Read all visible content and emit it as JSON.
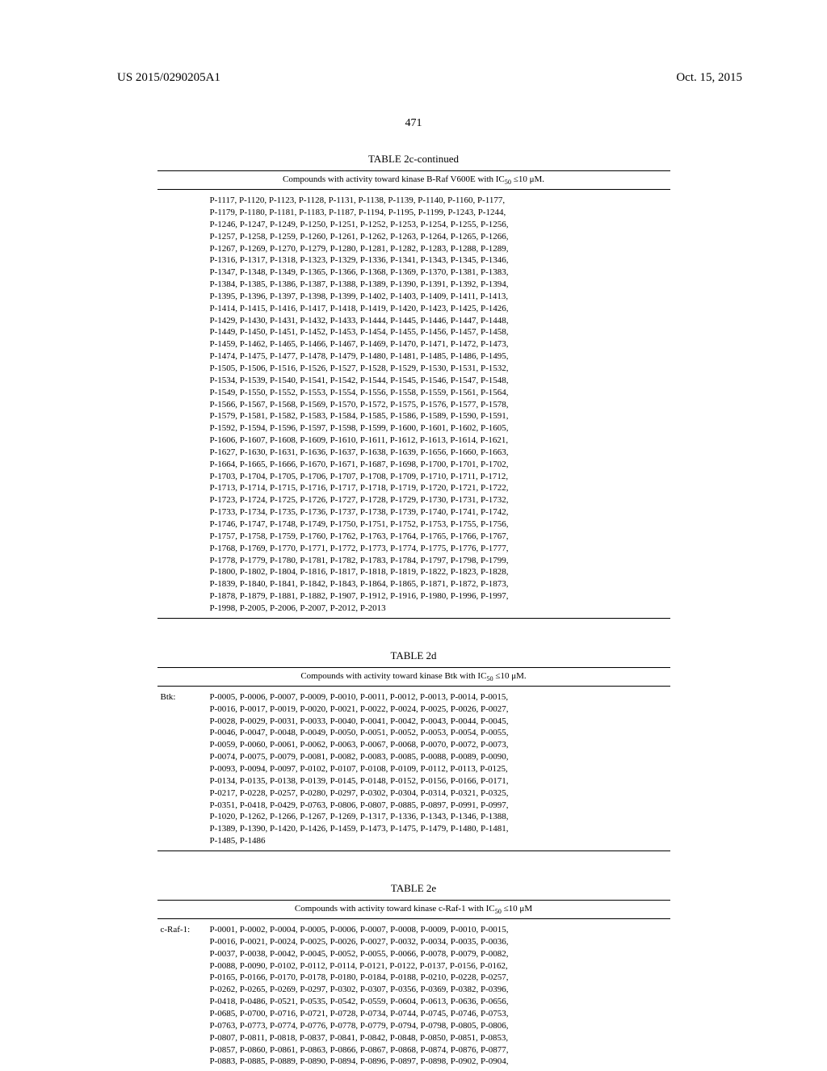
{
  "header": {
    "pub_number": "US 2015/0290205A1",
    "date": "Oct. 15, 2015"
  },
  "page_number": "471",
  "table2c": {
    "title": "TABLE 2c-continued",
    "subtitle_prefix": "Compounds with activity toward kinase B-Raf V600E with IC",
    "subtitle_sub": "50",
    "subtitle_suffix": " ≤10 μM.",
    "lines": [
      "P-1117, P-1120, P-1123, P-1128, P-1131, P-1138, P-1139, P-1140, P-1160, P-1177,",
      "P-1179, P-1180, P-1181, P-1183, P-1187, P-1194, P-1195, P-1199, P-1243, P-1244,",
      "P-1246, P-1247, P-1249, P-1250, P-1251, P-1252, P-1253, P-1254, P-1255, P-1256,",
      "P-1257, P-1258, P-1259, P-1260, P-1261, P-1262, P-1263, P-1264, P-1265, P-1266,",
      "P-1267, P-1269, P-1270, P-1279, P-1280, P-1281, P-1282, P-1283, P-1288, P-1289,",
      "P-1316, P-1317, P-1318, P-1323, P-1329, P-1336, P-1341, P-1343, P-1345, P-1346,",
      "P-1347, P-1348, P-1349, P-1365, P-1366, P-1368, P-1369, P-1370, P-1381, P-1383,",
      "P-1384, P-1385, P-1386, P-1387, P-1388, P-1389, P-1390, P-1391, P-1392, P-1394,",
      "P-1395, P-1396, P-1397, P-1398, P-1399, P-1402, P-1403, P-1409, P-1411, P-1413,",
      "P-1414, P-1415, P-1416, P-1417, P-1418, P-1419, P-1420, P-1423, P-1425, P-1426,",
      "P-1429, P-1430, P-1431, P-1432, P-1433, P-1444, P-1445, P-1446, P-1447, P-1448,",
      "P-1449, P-1450, P-1451, P-1452, P-1453, P-1454, P-1455, P-1456, P-1457, P-1458,",
      "P-1459, P-1462, P-1465, P-1466, P-1467, P-1469, P-1470, P-1471, P-1472, P-1473,",
      "P-1474, P-1475, P-1477, P-1478, P-1479, P-1480, P-1481, P-1485, P-1486, P-1495,",
      "P-1505, P-1506, P-1516, P-1526, P-1527, P-1528, P-1529, P-1530, P-1531, P-1532,",
      "P-1534, P-1539, P-1540, P-1541, P-1542, P-1544, P-1545, P-1546, P-1547, P-1548,",
      "P-1549, P-1550, P-1552, P-1553, P-1554, P-1556, P-1558, P-1559, P-1561, P-1564,",
      "P-1566, P-1567, P-1568, P-1569, P-1570, P-1572, P-1575, P-1576, P-1577, P-1578,",
      "P-1579, P-1581, P-1582, P-1583, P-1584, P-1585, P-1586, P-1589, P-1590, P-1591,",
      "P-1592, P-1594, P-1596, P-1597, P-1598, P-1599, P-1600, P-1601, P-1602, P-1605,",
      "P-1606, P-1607, P-1608, P-1609, P-1610, P-1611, P-1612, P-1613, P-1614, P-1621,",
      "P-1627, P-1630, P-1631, P-1636, P-1637, P-1638, P-1639, P-1656, P-1660, P-1663,",
      "P-1664, P-1665, P-1666, P-1670, P-1671, P-1687, P-1698, P-1700, P-1701, P-1702,",
      "P-1703, P-1704, P-1705, P-1706, P-1707, P-1708, P-1709, P-1710, P-1711, P-1712,",
      "P-1713, P-1714, P-1715, P-1716, P-1717, P-1718, P-1719, P-1720, P-1721, P-1722,",
      "P-1723, P-1724, P-1725, P-1726, P-1727, P-1728, P-1729, P-1730, P-1731, P-1732,",
      "P-1733, P-1734, P-1735, P-1736, P-1737, P-1738, P-1739, P-1740, P-1741, P-1742,",
      "P-1746, P-1747, P-1748, P-1749, P-1750, P-1751, P-1752, P-1753, P-1755, P-1756,",
      "P-1757, P-1758, P-1759, P-1760, P-1762, P-1763, P-1764, P-1765, P-1766, P-1767,",
      "P-1768, P-1769, P-1770, P-1771, P-1772, P-1773, P-1774, P-1775, P-1776, P-1777,",
      "P-1778, P-1779, P-1780, P-1781, P-1782, P-1783, P-1784, P-1797, P-1798, P-1799,",
      "P-1800, P-1802, P-1804, P-1816, P-1817, P-1818, P-1819, P-1822, P-1823, P-1828,",
      "P-1839, P-1840, P-1841, P-1842, P-1843, P-1864, P-1865, P-1871, P-1872, P-1873,",
      "P-1878, P-1879, P-1881, P-1882, P-1907, P-1912, P-1916, P-1980, P-1996, P-1997,",
      "P-1998, P-2005, P-2006, P-2007, P-2012, P-2013"
    ]
  },
  "table2d": {
    "title": "TABLE 2d",
    "subtitle_prefix": "Compounds with activity toward kinase Btk with IC",
    "subtitle_sub": "50",
    "subtitle_suffix": " ≤10 μM.",
    "label": "Btk:",
    "lines": [
      "P-0005, P-0006, P-0007, P-0009, P-0010, P-0011, P-0012, P-0013, P-0014, P-0015,",
      "P-0016, P-0017, P-0019, P-0020, P-0021, P-0022, P-0024, P-0025, P-0026, P-0027,",
      "P-0028, P-0029, P-0031, P-0033, P-0040, P-0041, P-0042, P-0043, P-0044, P-0045,",
      "P-0046, P-0047, P-0048, P-0049, P-0050, P-0051, P-0052, P-0053, P-0054, P-0055,",
      "P-0059, P-0060, P-0061, P-0062, P-0063, P-0067, P-0068, P-0070, P-0072, P-0073,",
      "P-0074, P-0075, P-0079, P-0081, P-0082, P-0083, P-0085, P-0088, P-0089, P-0090,",
      "P-0093, P-0094, P-0097, P-0102, P-0107, P-0108, P-0109, P-0112, P-0113, P-0125,",
      "P-0134, P-0135, P-0138, P-0139, P-0145, P-0148, P-0152, P-0156, P-0166, P-0171,",
      "P-0217, P-0228, P-0257, P-0280, P-0297, P-0302, P-0304, P-0314, P-0321, P-0325,",
      "P-0351, P-0418, P-0429, P-0763, P-0806, P-0807, P-0885, P-0897, P-0991, P-0997,",
      "P-1020, P-1262, P-1266, P-1267, P-1269, P-1317, P-1336, P-1343, P-1346, P-1388,",
      "P-1389, P-1390, P-1420, P-1426, P-1459, P-1473, P-1475, P-1479, P-1480, P-1481,",
      "P-1485, P-1486"
    ]
  },
  "table2e": {
    "title": "TABLE 2e",
    "subtitle_prefix": "Compounds with activity toward kinase c-Raf-1 with IC",
    "subtitle_sub": "50",
    "subtitle_suffix": " ≤10 μM",
    "label": "c-Raf-1:",
    "lines": [
      "P-0001, P-0002, P-0004, P-0005, P-0006, P-0007, P-0008, P-0009, P-0010, P-0015,",
      "P-0016, P-0021, P-0024, P-0025, P-0026, P-0027, P-0032, P-0034, P-0035, P-0036,",
      "P-0037, P-0038, P-0042, P-0045, P-0052, P-0055, P-0066, P-0078, P-0079, P-0082,",
      "P-0088, P-0090, P-0102, P-0112, P-0114, P-0121, P-0122, P-0137, P-0156, P-0162,",
      "P-0165, P-0166, P-0170, P-0178, P-0180, P-0184, P-0188, P-0210, P-0228, P-0257,",
      "P-0262, P-0265, P-0269, P-0297, P-0302, P-0307, P-0356, P-0369, P-0382, P-0396,",
      "P-0418, P-0486, P-0521, P-0535, P-0542, P-0559, P-0604, P-0613, P-0636, P-0656,",
      "P-0685, P-0700, P-0716, P-0721, P-0728, P-0734, P-0744, P-0745, P-0746, P-0753,",
      "P-0763, P-0773, P-0774, P-0776, P-0778, P-0779, P-0794, P-0798, P-0805, P-0806,",
      "P-0807, P-0811, P-0818, P-0837, P-0841, P-0842, P-0848, P-0850, P-0851, P-0853,",
      "P-0857, P-0860, P-0861, P-0863, P-0866, P-0867, P-0868, P-0874, P-0876, P-0877,",
      "P-0883, P-0885, P-0889, P-0890, P-0894, P-0896, P-0897, P-0898, P-0902, P-0904,"
    ]
  }
}
